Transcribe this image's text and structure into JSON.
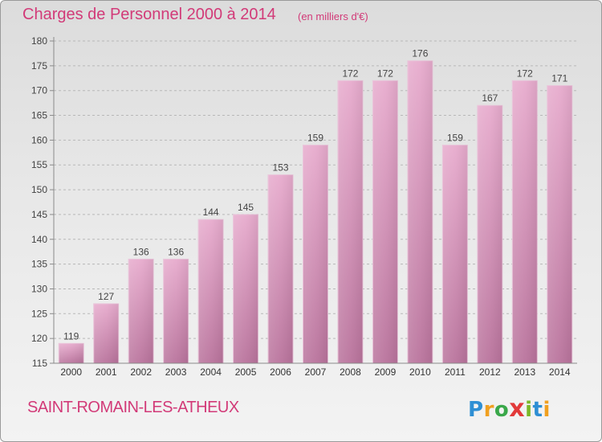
{
  "header": {
    "title": "Charges de Personnel 2000 à 2014",
    "subtitle": "(en milliers d'€)"
  },
  "footer": {
    "commune": "SAINT-ROMAIN-LES-ATHEUX",
    "logo": {
      "letters": [
        "P",
        "r",
        "o",
        "x",
        "i",
        "t",
        "i"
      ],
      "colors": [
        "#2e8fd4",
        "#f0a020",
        "#3aa84a",
        "#e23a3a",
        "#7ab828",
        "#2e8fd4",
        "#f0a020"
      ]
    }
  },
  "chart_data": {
    "type": "bar",
    "categories": [
      "2000",
      "2001",
      "2002",
      "2003",
      "2004",
      "2005",
      "2006",
      "2007",
      "2008",
      "2009",
      "2010",
      "2011",
      "2012",
      "2013",
      "2014"
    ],
    "values": [
      119,
      127,
      136,
      136,
      144,
      145,
      153,
      159,
      172,
      172,
      176,
      159,
      167,
      172,
      171
    ],
    "ylim": [
      115,
      180
    ],
    "yticks": [
      115,
      120,
      125,
      130,
      135,
      140,
      145,
      150,
      155,
      160,
      165,
      170,
      175,
      180
    ],
    "grid": true,
    "bar_color": "#d98bb5"
  }
}
